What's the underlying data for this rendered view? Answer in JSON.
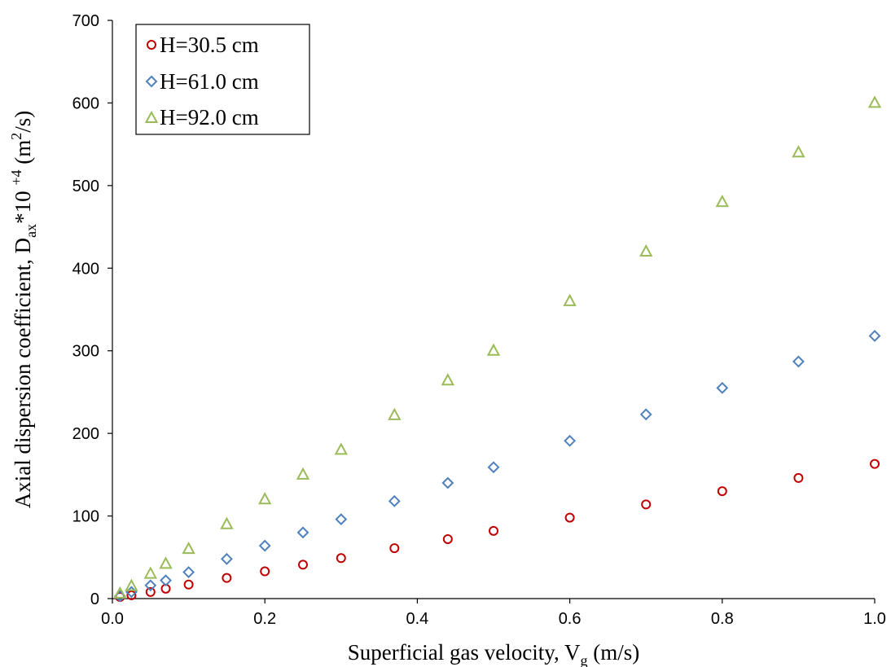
{
  "chart_data": {
    "type": "scatter",
    "xlabel": {
      "main": "Superficial gas velocity, V",
      "sub": "g",
      "rest": " (m/s)"
    },
    "ylabel": {
      "main": "Axial dispersion coefficient, D",
      "sub": "ax",
      "mid": "*10 ",
      "sup1": "+4",
      "mid2": " (m",
      "sup2": "2",
      "rest": "/s)"
    },
    "xlim": [
      0.0,
      1.0
    ],
    "ylim": [
      0,
      700
    ],
    "x_ticks": [
      "0.0",
      "0.2",
      "0.4",
      "0.6",
      "0.8",
      "1.0"
    ],
    "x_tick_values": [
      0.0,
      0.2,
      0.4,
      0.6,
      0.8,
      1.0
    ],
    "y_ticks": [
      "0",
      "100",
      "200",
      "300",
      "400",
      "500",
      "600",
      "700"
    ],
    "y_tick_values": [
      0,
      100,
      200,
      300,
      400,
      500,
      600,
      700
    ],
    "grid": false,
    "legend_position": "top-left",
    "series": [
      {
        "name": "H=30.5 cm",
        "marker": "circle",
        "color": "#C00000",
        "x": [
          0.01,
          0.025,
          0.05,
          0.07,
          0.1,
          0.15,
          0.2,
          0.25,
          0.3,
          0.37,
          0.44,
          0.5,
          0.6,
          0.7,
          0.8,
          0.9,
          1.0
        ],
        "y": [
          2,
          4,
          8,
          12,
          17,
          25,
          33,
          41,
          49,
          61,
          72,
          82,
          98,
          114,
          130,
          146,
          163
        ]
      },
      {
        "name": "H=61.0 cm",
        "marker": "diamond",
        "color": "#4F81BD",
        "x": [
          0.01,
          0.025,
          0.05,
          0.07,
          0.1,
          0.15,
          0.2,
          0.25,
          0.3,
          0.37,
          0.44,
          0.5,
          0.6,
          0.7,
          0.8,
          0.9,
          1.0
        ],
        "y": [
          3,
          8,
          16,
          22,
          32,
          48,
          64,
          80,
          96,
          118,
          140,
          159,
          191,
          223,
          255,
          287,
          318
        ]
      },
      {
        "name": "H=92.0 cm",
        "marker": "triangle",
        "color": "#9BBB59",
        "x": [
          0.01,
          0.025,
          0.05,
          0.07,
          0.1,
          0.15,
          0.2,
          0.25,
          0.3,
          0.37,
          0.44,
          0.5,
          0.6,
          0.7,
          0.8,
          0.9,
          1.0
        ],
        "y": [
          6,
          15,
          30,
          42,
          60,
          90,
          120,
          150,
          180,
          222,
          264,
          300,
          360,
          420,
          480,
          540,
          600
        ]
      }
    ]
  }
}
